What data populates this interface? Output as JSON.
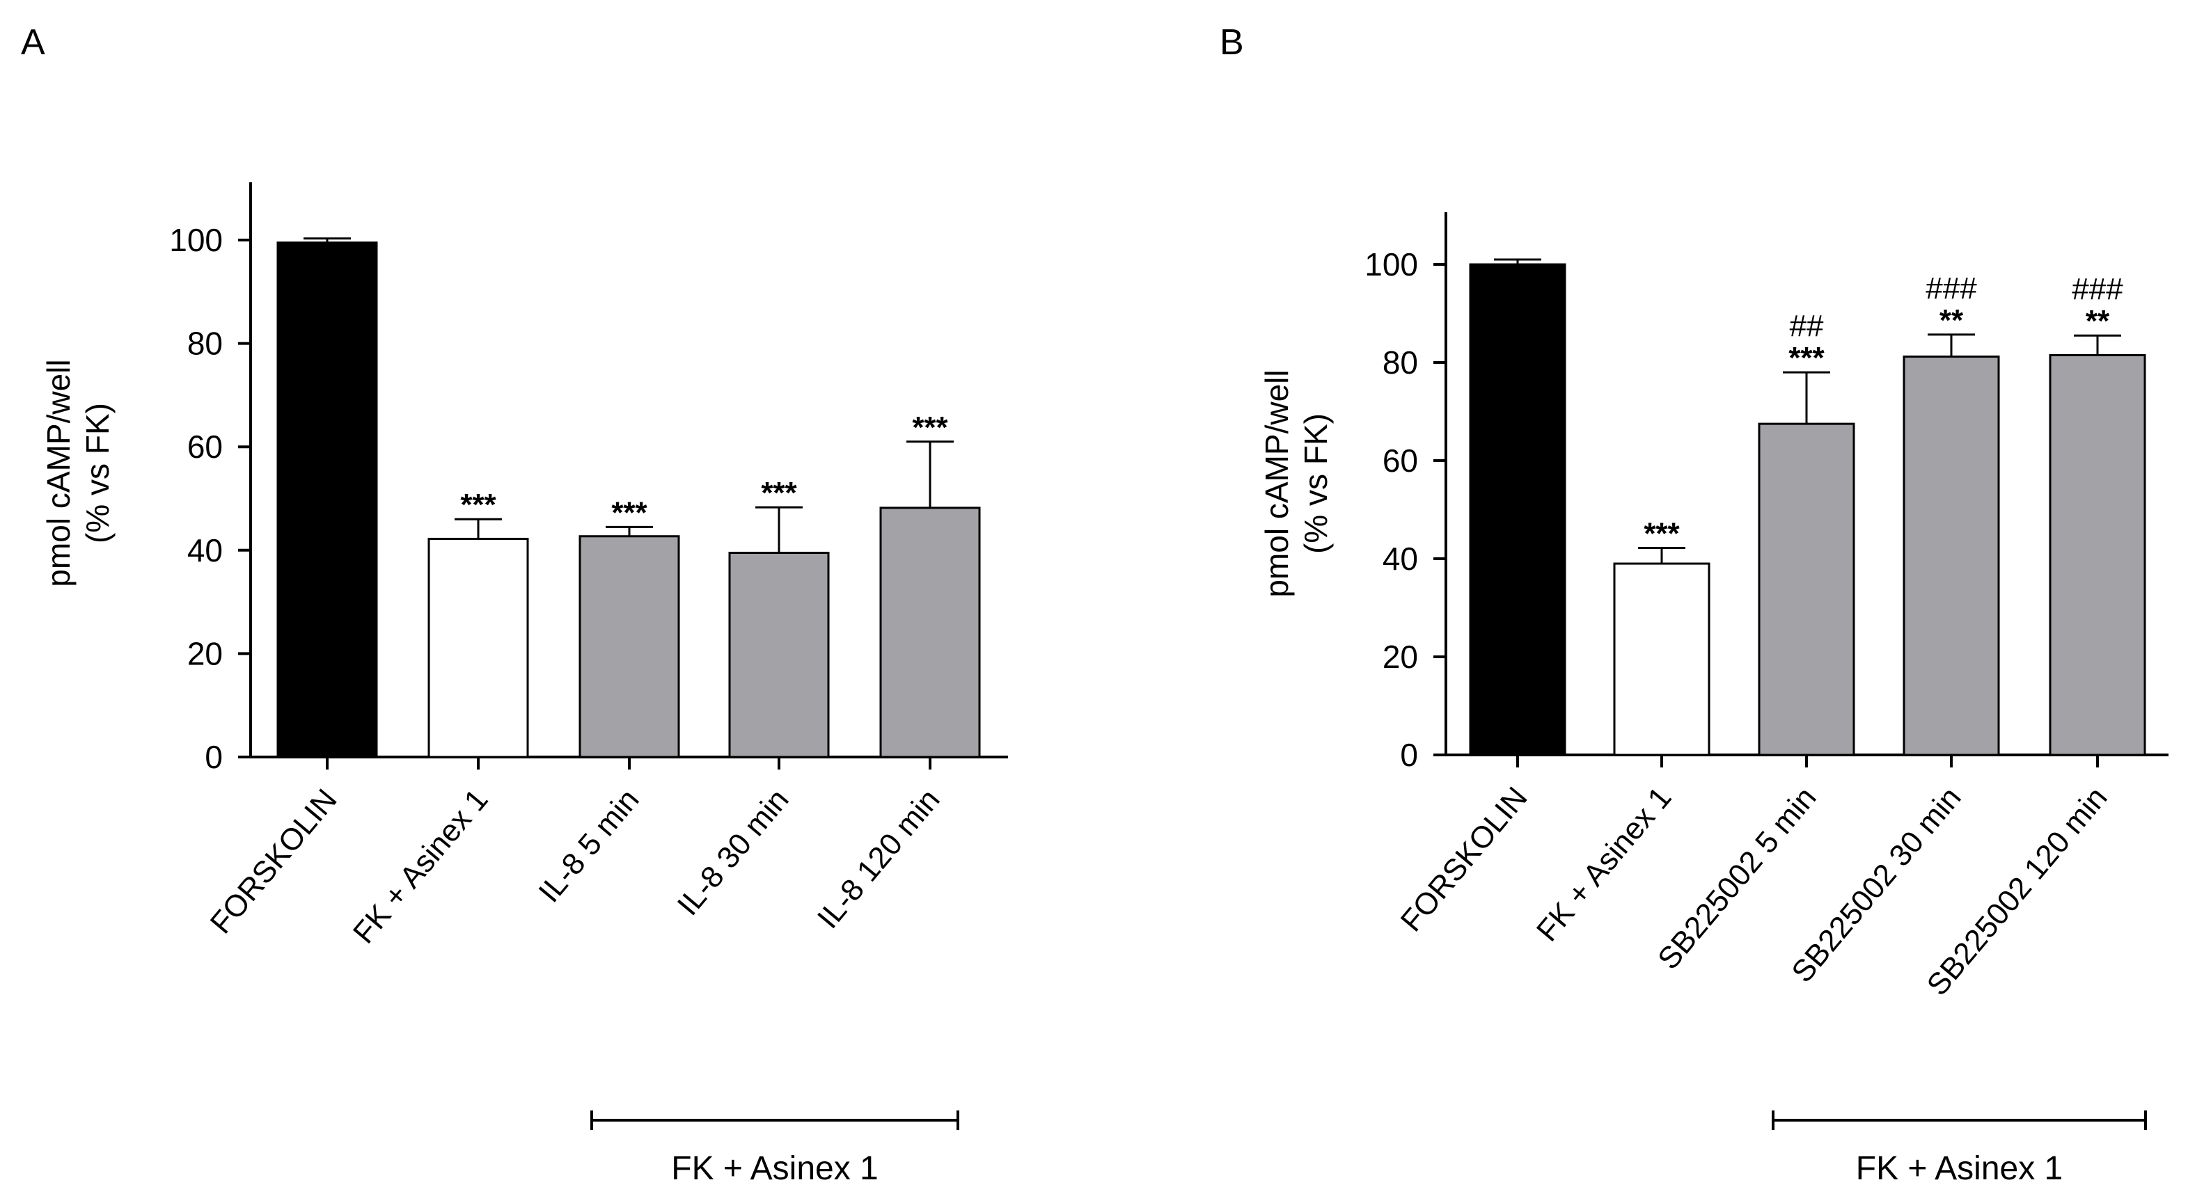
{
  "chart_data": [
    {
      "panel": "A",
      "type": "bar",
      "categories": [
        "FORSKOLIN",
        "FK + Asinex 1",
        "IL-8  5 min",
        "IL-8  30 min",
        "IL-8 120 min"
      ],
      "values": [
        99.5,
        42.2,
        42.7,
        39.5,
        48.2
      ],
      "errors": [
        0.8,
        3.8,
        1.8,
        8.8,
        12.8
      ],
      "colors": [
        "#000000",
        "#ffffff",
        "#a3a3a7",
        "#a3a3a7",
        "#a3a3a7"
      ],
      "significance": [
        "",
        "***",
        "***",
        "***",
        "***"
      ],
      "significance2": [
        "",
        "",
        "",
        "",
        ""
      ],
      "ylabel": [
        "pmol cAMP/well",
        "(% vs FK)"
      ],
      "yticks": [
        0,
        20,
        40,
        60,
        80,
        100
      ],
      "ylim": [
        0,
        110
      ],
      "group": {
        "label": "FK + Asinex 1",
        "from": 2,
        "to": 4
      }
    },
    {
      "panel": "B",
      "type": "bar",
      "categories": [
        "FORSKOLIN",
        "FK + Asinex 1",
        "SB225002  5 min",
        "SB225002  30 min",
        "SB225002  120 min"
      ],
      "values": [
        100,
        39,
        67.5,
        81.2,
        81.5
      ],
      "errors": [
        1.0,
        3.2,
        10.5,
        4.5,
        4.0
      ],
      "colors": [
        "#000000",
        "#ffffff",
        "#a3a3a7",
        "#a3a3a7",
        "#a3a3a7"
      ],
      "significance": [
        "",
        "***",
        "***",
        "**",
        "**"
      ],
      "significance2": [
        "",
        "",
        "##",
        "###",
        "###"
      ],
      "ylabel": [
        "pmol cAMP/well",
        "(% vs FK)"
      ],
      "yticks": [
        0,
        20,
        40,
        60,
        80,
        100
      ],
      "ylim": [
        0,
        110
      ],
      "group": {
        "label": "FK + Asinex 1",
        "from": 2,
        "to": 4
      }
    }
  ]
}
